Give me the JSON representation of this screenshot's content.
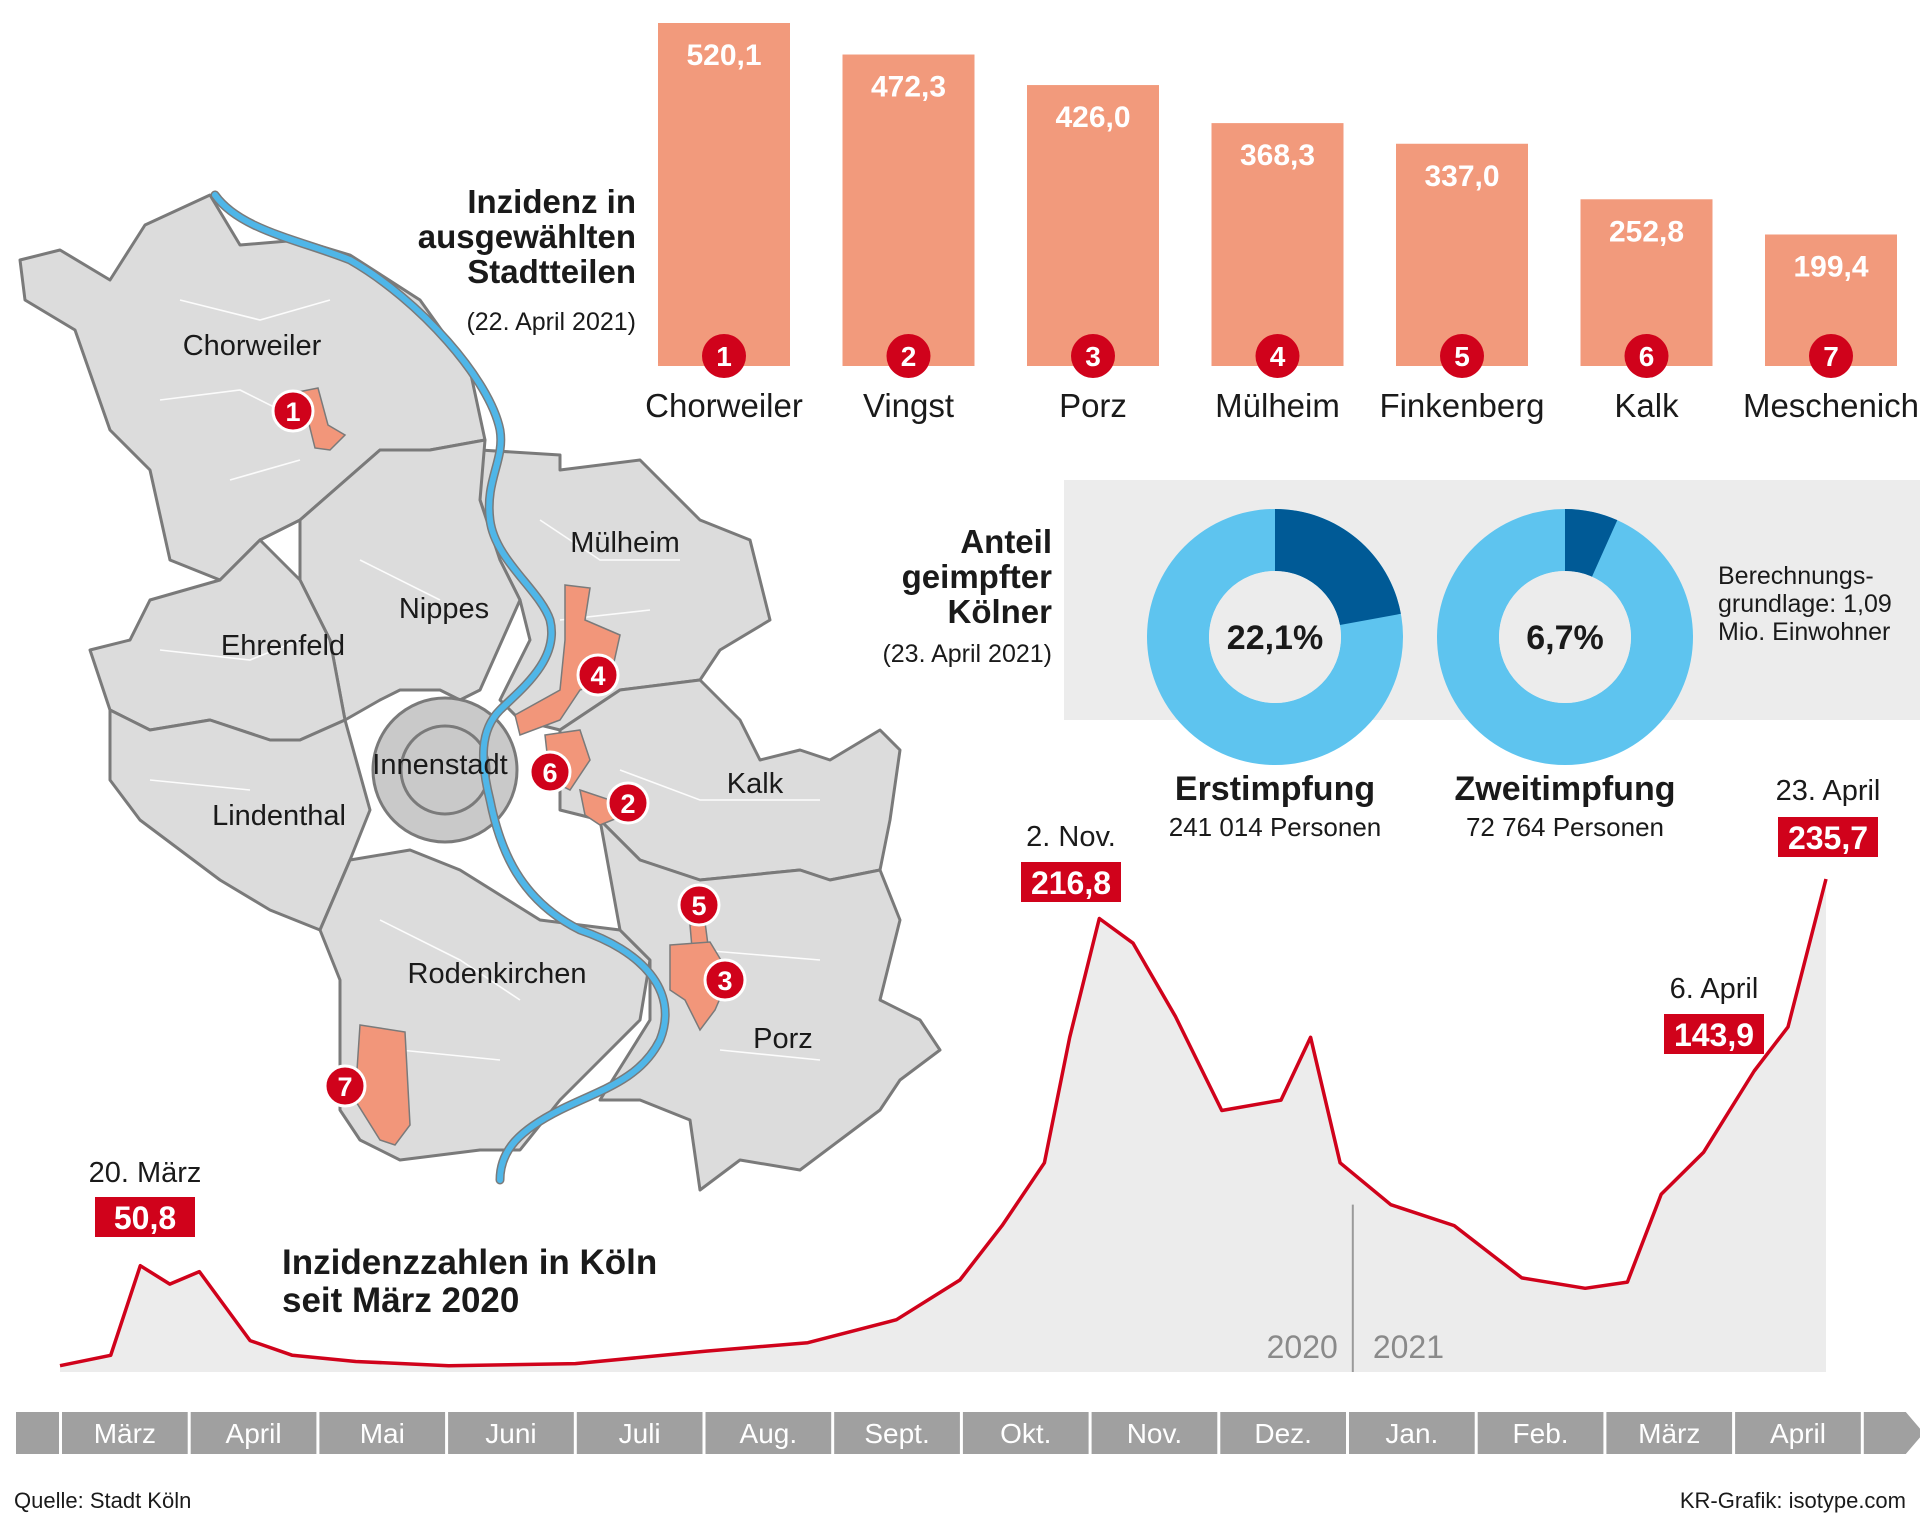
{
  "bar_section": {
    "title": "Inzidenz in ausgewählten Stadtteilen",
    "date": "(22. April 2021)"
  },
  "map": {
    "districts": [
      "Chorweiler",
      "Mülheim",
      "Nippes",
      "Ehrenfeld",
      "Innenstadt",
      "Kalk",
      "Lindenthal",
      "Rodenkirchen",
      "Porz"
    ],
    "markers": [
      "1",
      "2",
      "3",
      "4",
      "5",
      "6",
      "7"
    ],
    "colors": {
      "district_fill": "#dcdcdc",
      "innenstadt_fill": "#c9c9c9",
      "border": "#7a7a7a",
      "river": "#4fb6e8",
      "highlight": "#f2967a"
    }
  },
  "vaccination": {
    "title": "Anteil geimpfter Kölner",
    "date": "(23. April 2021)",
    "note": "Berechnungs- grundlage: 1,09 Mio. Einwohner",
    "colors": {
      "dark": "#005a96",
      "light": "#5ec4ef",
      "box": "#ececec"
    },
    "rings": [
      {
        "label": "Erstimpfung",
        "sub": "241 014 Personen",
        "value_label": "22,1%",
        "value": 22.1
      },
      {
        "label": "Zweitimpfung",
        "sub": "72 764 Personen",
        "value_label": "6,7%",
        "value": 6.7
      }
    ]
  },
  "line_section": {
    "title": "Inzidenzzahlen in Köln seit März 2020",
    "year_left": "2020",
    "year_right": "2021",
    "months": [
      "März",
      "April",
      "Mai",
      "Juni",
      "Juli",
      "Aug.",
      "Sept.",
      "Okt.",
      "Nov.",
      "Dez.",
      "Jan.",
      "Feb.",
      "März",
      "April"
    ],
    "annotations": [
      {
        "date": "20. März",
        "value": "50,8"
      },
      {
        "date": "2. Nov.",
        "value": "216,8"
      },
      {
        "date": "6. April",
        "value": "143,9"
      },
      {
        "date": "23. April",
        "value": "235,7"
      }
    ]
  },
  "footer": {
    "source": "Quelle: Stadt Köln",
    "credit": "KR-Grafik: isotype.com"
  },
  "chart_data": [
    {
      "type": "bar",
      "title": "Inzidenz in ausgewählten Stadtteilen",
      "subtitle": "(22. April 2021)",
      "categories": [
        "Chorweiler",
        "Vingst",
        "Porz",
        "Mülheim",
        "Finkenberg",
        "Kalk",
        "Meschenich"
      ],
      "numbers": [
        "1",
        "2",
        "3",
        "4",
        "5",
        "6",
        "7"
      ],
      "values": [
        520.1,
        472.3,
        426.0,
        368.3,
        337.0,
        252.8,
        199.4
      ],
      "value_labels": [
        "520,1",
        "472,3",
        "426,0",
        "368,3",
        "337,0",
        "252,8",
        "199,4"
      ],
      "ylim": [
        0,
        520.1
      ],
      "colors": {
        "bar": "#f29a7c",
        "label": "#ffffff",
        "badge": "#d0021b"
      }
    },
    {
      "type": "pie",
      "title": "Anteil geimpfter Kölner",
      "subtitle": "(23. April 2021)",
      "series": [
        {
          "name": "Erstimpfung",
          "values": [
            22.1,
            77.9
          ]
        },
        {
          "name": "Zweitimpfung",
          "values": [
            6.7,
            93.3
          ]
        }
      ]
    },
    {
      "type": "area",
      "title": "Inzidenzzahlen in Köln seit März 2020",
      "x": [
        "2020-03-01",
        "2020-03-13",
        "2020-03-20",
        "2020-03-27",
        "2020-04-03",
        "2020-04-15",
        "2020-04-25",
        "2020-05-10",
        "2020-06-01",
        "2020-07-01",
        "2020-08-01",
        "2020-08-25",
        "2020-09-15",
        "2020-09-30",
        "2020-10-10",
        "2020-10-20",
        "2020-10-26",
        "2020-11-02",
        "2020-11-10",
        "2020-11-20",
        "2020-12-01",
        "2020-12-15",
        "2020-12-22",
        "2020-12-29",
        "2021-01-10",
        "2021-01-25",
        "2021-02-10",
        "2021-02-25",
        "2021-03-07",
        "2021-03-15",
        "2021-03-25",
        "2021-04-06",
        "2021-04-14",
        "2021-04-23"
      ],
      "values": [
        3,
        8,
        50.8,
        42,
        48,
        15,
        8,
        5,
        3,
        4,
        10,
        14,
        25,
        44,
        70,
        100,
        160,
        216.8,
        205,
        170,
        125,
        130,
        160,
        100,
        80,
        70,
        45,
        40,
        43,
        85,
        105,
        143.9,
        165,
        235.7
      ],
      "ylim": [
        0,
        240
      ],
      "colors": {
        "line": "#d0021b",
        "area": "#ececec"
      }
    }
  ]
}
